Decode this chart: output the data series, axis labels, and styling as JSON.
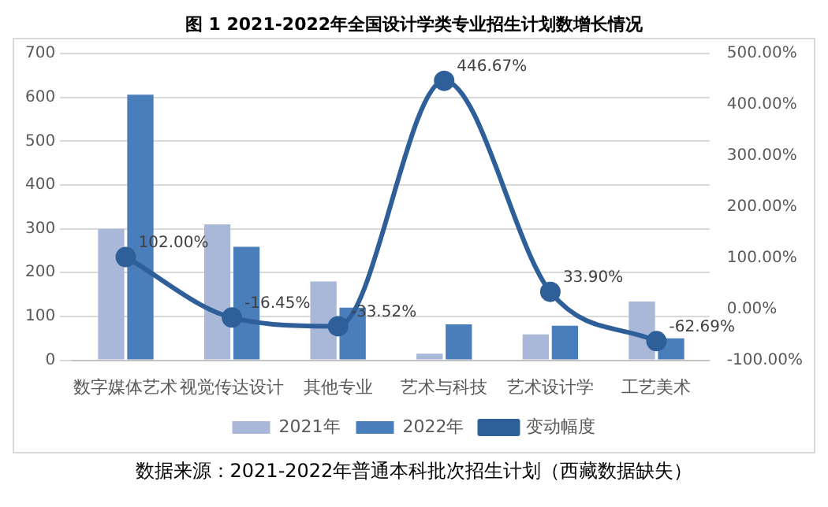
{
  "chart_data": {
    "type": "bar",
    "title": "图 1  2021-2022年全国设计学类专业招生计划数增长情况",
    "categories": [
      "数字媒体艺术",
      "视觉传达设计",
      "其他专业",
      "艺术与科技",
      "艺术设计学",
      "工艺美术"
    ],
    "series": [
      {
        "name": "2021年",
        "color": "#a9b8d8",
        "values": [
          300,
          310,
          180,
          15,
          59,
          134
        ]
      },
      {
        "name": "2022年",
        "color": "#4a7ebb",
        "values": [
          606,
          259,
          120,
          82,
          79,
          50
        ]
      },
      {
        "name": "变动幅度",
        "type": "line",
        "axis": "y2",
        "color": "#2f5f98",
        "values": [
          102.0,
          -16.45,
          -33.52,
          446.67,
          33.9,
          -62.69
        ],
        "value_labels": [
          "102.00%",
          "-16.45%",
          "-33.52%",
          "446.67%",
          "33.90%",
          "-62.69%"
        ]
      }
    ],
    "ylim": [
      0,
      700
    ],
    "yticks": [
      0,
      100,
      200,
      300,
      400,
      500,
      600,
      700
    ],
    "y2lim": [
      -100,
      500
    ],
    "y2ticks": [
      {
        "value": -100,
        "label": "-100.00%"
      },
      {
        "value": 0,
        "label": "0.00%"
      },
      {
        "value": 100,
        "label": "100.00%"
      },
      {
        "value": 200,
        "label": "200.00%"
      },
      {
        "value": 300,
        "label": "300.00%"
      },
      {
        "value": 400,
        "label": "400.00%"
      },
      {
        "value": 500,
        "label": "500.00%"
      }
    ],
    "grid": "y",
    "legend": "bottom",
    "marker": "circle",
    "line_style": "solid",
    "annotations": [
      "数据来源：2021-2022年普通本科批次招生计划（西藏数据缺失）"
    ]
  }
}
